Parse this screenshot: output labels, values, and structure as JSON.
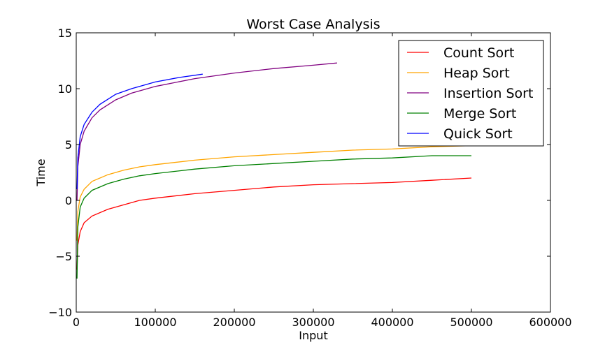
{
  "chart_data": {
    "type": "line",
    "title": "Worst Case Analysis",
    "xlabel": "Input",
    "ylabel": "Time",
    "xlim": [
      0,
      600000
    ],
    "ylim": [
      -10,
      15
    ],
    "xticks": [
      0,
      100000,
      200000,
      300000,
      400000,
      500000,
      600000
    ],
    "xtick_labels": [
      "0",
      "100000",
      "200000",
      "300000",
      "400000",
      "500000",
      "600000"
    ],
    "yticks": [
      -10,
      -5,
      0,
      5,
      10,
      15
    ],
    "ytick_labels": [
      "−10",
      "−5",
      "0",
      "5",
      "10",
      "15"
    ],
    "grid": false,
    "legend_position": "top-right",
    "series": [
      {
        "name": "Count Sort",
        "color": "#ff0000",
        "x": [
          1000,
          2000,
          5000,
          10000,
          20000,
          40000,
          60000,
          80000,
          100000,
          150000,
          200000,
          250000,
          300000,
          350000,
          400000,
          450000,
          500000
        ],
        "y": [
          -6.2,
          -4.0,
          -2.8,
          -2.0,
          -1.4,
          -0.8,
          -0.4,
          0.0,
          0.2,
          0.6,
          0.9,
          1.2,
          1.4,
          1.5,
          1.6,
          1.8,
          2.0
        ]
      },
      {
        "name": "Heap Sort",
        "color": "#ffa500",
        "x": [
          1000,
          2000,
          5000,
          10000,
          20000,
          40000,
          60000,
          80000,
          100000,
          150000,
          200000,
          250000,
          300000,
          350000,
          400000,
          450000,
          500000
        ],
        "y": [
          -3.6,
          -1.0,
          0.3,
          1.0,
          1.7,
          2.3,
          2.7,
          3.0,
          3.2,
          3.6,
          3.9,
          4.1,
          4.3,
          4.5,
          4.6,
          4.8,
          4.9
        ]
      },
      {
        "name": "Insertion Sort",
        "color": "#800080",
        "x": [
          1000,
          2000,
          5000,
          10000,
          20000,
          30000,
          50000,
          70000,
          100000,
          150000,
          200000,
          250000,
          300000,
          330000
        ],
        "y": [
          0.0,
          3.0,
          5.0,
          6.2,
          7.4,
          8.1,
          9.0,
          9.6,
          10.2,
          10.9,
          11.4,
          11.8,
          12.1,
          12.3
        ]
      },
      {
        "name": "Merge Sort",
        "color": "#008000",
        "x": [
          1000,
          2000,
          5000,
          10000,
          20000,
          40000,
          60000,
          80000,
          100000,
          150000,
          200000,
          250000,
          300000,
          350000,
          400000,
          450000,
          500000
        ],
        "y": [
          -7.0,
          -2.4,
          -0.6,
          0.2,
          0.9,
          1.5,
          1.9,
          2.2,
          2.4,
          2.8,
          3.1,
          3.3,
          3.5,
          3.7,
          3.8,
          4.0,
          4.0
        ]
      },
      {
        "name": "Quick Sort",
        "color": "#0000ff",
        "x": [
          1000,
          2000,
          5000,
          10000,
          20000,
          30000,
          50000,
          70000,
          100000,
          130000,
          160000
        ],
        "y": [
          1.0,
          3.8,
          5.7,
          6.8,
          7.9,
          8.6,
          9.5,
          10.0,
          10.6,
          11.0,
          11.3
        ]
      }
    ]
  }
}
